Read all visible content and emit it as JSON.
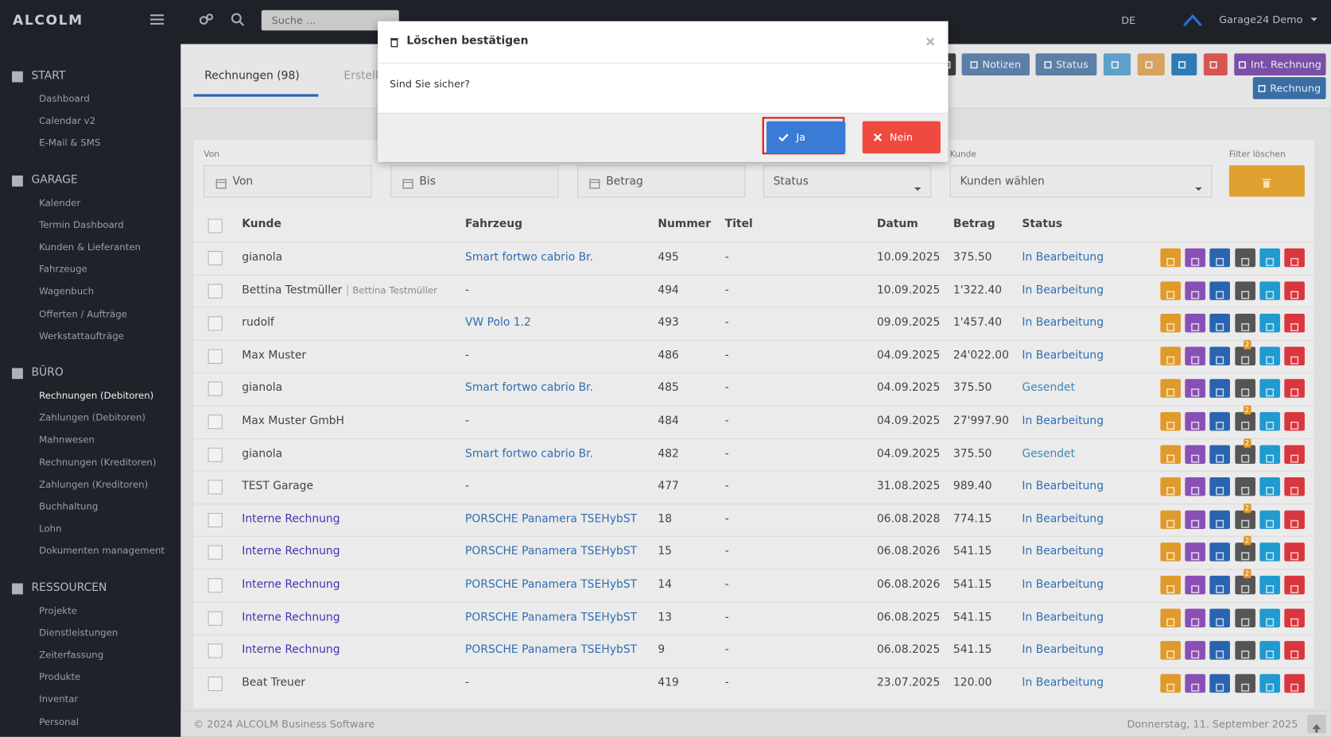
{
  "topbar": {
    "brand": "ALCOLM",
    "search_placeholder": "Suche ...",
    "language": "DE",
    "user": "Garage24 Demo"
  },
  "sidebar": {
    "sections": [
      {
        "title": "START",
        "items": [
          "Dashboard",
          "Calendar v2",
          "E-Mail & SMS"
        ]
      },
      {
        "title": "GARAGE",
        "items": [
          "Kalender",
          "Termin Dashboard",
          "Kunden & Lieferanten",
          "Fahrzeuge",
          "Wagenbuch",
          "Offerten / Aufträge",
          "Werkstattaufträge"
        ]
      },
      {
        "title": "BÜRO",
        "items": [
          "Rechnungen (Debitoren)",
          "Zahlungen (Debitoren)",
          "Mahnwesen",
          "Rechnungen (Kreditoren)",
          "Zahlungen (Kreditoren)",
          "Buchhaltung",
          "Lohn",
          "Dokumenten management"
        ]
      },
      {
        "title": "RESSOURCEN",
        "items": [
          "Projekte",
          "Dienstleistungen",
          "Zeiterfassung",
          "Produkte",
          "Inventar",
          "Personal"
        ]
      }
    ],
    "active": "Rechnungen (Debitoren)"
  },
  "toolbar": {
    "notizen": "Notizen",
    "status": "Status",
    "int_rechnung": "Int. Rechnung",
    "rechnung": "Rechnung"
  },
  "tabs": [
    "Rechnungen (98)",
    "Erstell"
  ],
  "filters": {
    "label_von": "Von",
    "label_kunde": "Kunde",
    "label_clear": "Filter löschen",
    "von": "Von",
    "bis": "Bis",
    "betrag": "Betrag",
    "status": "Status",
    "kunde": "Kunden wählen"
  },
  "table": {
    "headers": [
      "Kunde",
      "Fahrzeug",
      "Nummer",
      "Titel",
      "Datum",
      "Betrag",
      "Status"
    ],
    "rows": [
      {
        "kunde": "gianola",
        "fahrzeug": "Smart fortwo cabrio Br.",
        "fahrzeug_color": "#2f6db5",
        "nummer": "495",
        "titel": "-",
        "datum": "10.09.2025",
        "betrag": "375.50",
        "status": "In Bearbeitung"
      },
      {
        "kunde": "Bettina Testmüller",
        "kunde_sub": "Bettina Testmüller",
        "fahrzeug": "-",
        "nummer": "494",
        "titel": "-",
        "datum": "10.09.2025",
        "betrag": "1'322.40",
        "status": "In Bearbeitung"
      },
      {
        "kunde": "rudolf",
        "fahrzeug": "VW Polo 1.2",
        "fahrzeug_color": "#2f6db5",
        "nummer": "493",
        "titel": "-",
        "datum": "09.09.2025",
        "betrag": "1'457.40",
        "status": "In Bearbeitung"
      },
      {
        "kunde": "Max Muster",
        "fahrzeug": "-",
        "nummer": "486",
        "titel": "-",
        "datum": "04.09.2025",
        "betrag": "24'022.00",
        "status": "In Bearbeitung",
        "badge": "2"
      },
      {
        "kunde": "gianola",
        "fahrzeug": "Smart fortwo cabrio Br.",
        "fahrzeug_color": "#2f6db5",
        "nummer": "485",
        "titel": "-",
        "datum": "04.09.2025",
        "betrag": "375.50",
        "status": "Gesendet",
        "status_color": "#3a8ab5"
      },
      {
        "kunde": "Max Muster GmbH",
        "fahrzeug": "-",
        "nummer": "484",
        "titel": "-",
        "datum": "04.09.2025",
        "betrag": "27'997.90",
        "status": "In Bearbeitung",
        "badge": "2"
      },
      {
        "kunde": "gianola",
        "fahrzeug": "Smart fortwo cabrio Br.",
        "fahrzeug_color": "#2f6db5",
        "nummer": "482",
        "titel": "-",
        "datum": "04.09.2025",
        "betrag": "375.50",
        "status": "Gesendet",
        "status_color": "#3a8ab5",
        "badge": "2"
      },
      {
        "kunde": "TEST Garage",
        "fahrzeug": "-",
        "nummer": "477",
        "titel": "-",
        "datum": "31.08.2025",
        "betrag": "989.40",
        "status": "In Bearbeitung"
      },
      {
        "kunde": "Interne Rechnung",
        "kunde_color": "#4b2fb1",
        "fahrzeug": "PORSCHE Panamera TSEHybST",
        "fahrzeug_color": "#2f6db5",
        "nummer": "18",
        "titel": "-",
        "datum": "06.08.2028",
        "betrag": "774.15",
        "status": "In Bearbeitung",
        "badge": "2"
      },
      {
        "kunde": "Interne Rechnung",
        "kunde_color": "#4b2fb1",
        "fahrzeug": "PORSCHE Panamera TSEHybST",
        "fahrzeug_color": "#2f6db5",
        "nummer": "15",
        "titel": "-",
        "datum": "06.08.2026",
        "betrag": "541.15",
        "status": "In Bearbeitung",
        "badge": "2"
      },
      {
        "kunde": "Interne Rechnung",
        "kunde_color": "#4b2fb1",
        "fahrzeug": "PORSCHE Panamera TSEHybST",
        "fahrzeug_color": "#2f6db5",
        "nummer": "14",
        "titel": "-",
        "datum": "06.08.2026",
        "betrag": "541.15",
        "status": "In Bearbeitung",
        "badge": "2"
      },
      {
        "kunde": "Interne Rechnung",
        "kunde_color": "#4b2fb1",
        "fahrzeug": "PORSCHE Panamera TSEHybST",
        "fahrzeug_color": "#2f6db5",
        "nummer": "13",
        "titel": "-",
        "datum": "06.08.2025",
        "betrag": "541.15",
        "status": "In Bearbeitung"
      },
      {
        "kunde": "Interne Rechnung",
        "kunde_color": "#4b2fb1",
        "fahrzeug": "PORSCHE Panamera TSEHybST",
        "fahrzeug_color": "#2f6db5",
        "nummer": "9",
        "titel": "-",
        "datum": "06.08.2025",
        "betrag": "541.15",
        "status": "In Bearbeitung"
      },
      {
        "kunde": "Beat Treuer",
        "fahrzeug": "-",
        "nummer": "419",
        "titel": "-",
        "datum": "23.07.2025",
        "betrag": "120.00",
        "status": "In Bearbeitung"
      }
    ]
  },
  "footer": {
    "copyright": "© 2024 ALCOLM Business Software",
    "date": "Donnerstag, 11. September 2025"
  },
  "modal": {
    "title": "Löschen bestätigen",
    "body": "Sind Sie sicher?",
    "yes": "Ja",
    "no": "Nein"
  }
}
